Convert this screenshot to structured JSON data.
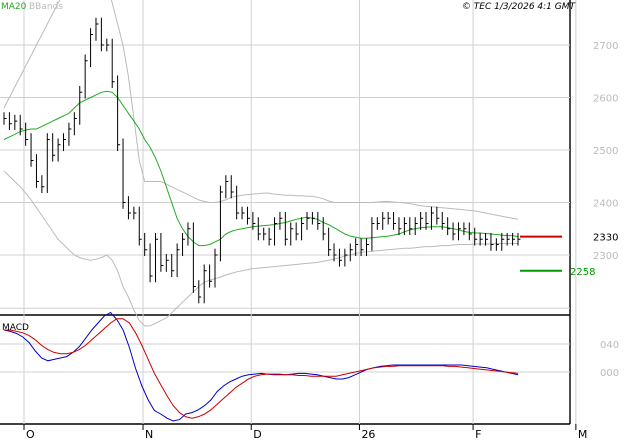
{
  "header": {
    "ma_label": "MA20",
    "bb_label": "BBands",
    "copyright": "© TEC 1/3/2026 4:1 GMT"
  },
  "colors": {
    "ma": "#22aa22",
    "bbands": "#bbbbbb",
    "price": "#000000",
    "macd": "#0000cc",
    "signal": "#cc0000",
    "marker_red": "#cc0000",
    "marker_green": "#009900",
    "grid": "#d0d0d0"
  },
  "chart_data": [
    {
      "type": "ohlc",
      "title": "",
      "legend": [
        "MA20",
        "BBands"
      ],
      "x_ticks": [
        {
          "label": "O",
          "i": 0
        },
        {
          "label": "N",
          "i": 22
        },
        {
          "label": "D",
          "i": 42
        },
        {
          "label": "26",
          "i": 62
        },
        {
          "label": "F",
          "i": 83
        },
        {
          "label": "M",
          "i": 102
        }
      ],
      "ylim": [
        2190,
        2750
      ],
      "y_ticks": [
        2300,
        2400,
        2500,
        2600,
        2700
      ],
      "markers": [
        {
          "label": "2330",
          "value": 2335,
          "color": "red"
        },
        {
          "label": "2258",
          "value": 2270,
          "color": "green"
        }
      ],
      "close": [
        2560,
        2550,
        2555,
        2540,
        2520,
        2480,
        2440,
        2430,
        2520,
        2490,
        2510,
        2520,
        2540,
        2560,
        2610,
        2670,
        2720,
        2740,
        2700,
        2700,
        2630,
        2510,
        2400,
        2380,
        2380,
        2330,
        2310,
        2260,
        2330,
        2280,
        2290,
        2270,
        2310,
        2330,
        2350,
        2240,
        2220,
        2270,
        2250,
        2300,
        2420,
        2440,
        2420,
        2380,
        2380,
        2370,
        2360,
        2340,
        2340,
        2330,
        2360,
        2370,
        2330,
        2350,
        2340,
        2360,
        2370,
        2370,
        2360,
        2340,
        2310,
        2300,
        2290,
        2300,
        2310,
        2320,
        2310,
        2320,
        2360,
        2360,
        2370,
        2370,
        2360,
        2350,
        2360,
        2350,
        2360,
        2370,
        2360,
        2380,
        2370,
        2360,
        2350,
        2340,
        2350,
        2350,
        2340,
        2330,
        2330,
        2330,
        2320,
        2320,
        2330,
        2330,
        2330,
        2330
      ],
      "ma20": [
        2520,
        2525,
        2530,
        2535,
        2538,
        2540,
        2540,
        2545,
        2550,
        2555,
        2560,
        2565,
        2570,
        2580,
        2590,
        2595,
        2600,
        2605,
        2610,
        2612,
        2610,
        2600,
        2585,
        2570,
        2555,
        2540,
        2520,
        2505,
        2485,
        2460,
        2430,
        2400,
        2370,
        2350,
        2335,
        2325,
        2318,
        2318,
        2320,
        2325,
        2330,
        2340,
        2345,
        2348,
        2350,
        2352,
        2354,
        2355,
        2356,
        2357,
        2358,
        2360,
        2362,
        2365,
        2368,
        2370,
        2372,
        2370,
        2368,
        2362,
        2358,
        2352,
        2346,
        2340,
        2336,
        2334,
        2332,
        2332,
        2333,
        2334,
        2335,
        2336,
        2338,
        2340,
        2344,
        2348,
        2350,
        2352,
        2353,
        2354,
        2354,
        2354,
        2352,
        2350,
        2348,
        2345,
        2343,
        2342,
        2342,
        2341,
        2340,
        2339,
        2338,
        2337,
        2337,
        2335
      ],
      "bb_upper": [
        2580,
        2600,
        2620,
        2640,
        2660,
        2680,
        2700,
        2720,
        2740,
        2760,
        2780,
        2800,
        2820,
        2830,
        2840,
        2848,
        2850,
        2846,
        2840,
        2820,
        2780,
        2740,
        2700,
        2640,
        2560,
        2480,
        2440,
        2440,
        2440,
        2440,
        2435,
        2430,
        2425,
        2420,
        2415,
        2410,
        2405,
        2402,
        2400,
        2400,
        2402,
        2405,
        2410,
        2412,
        2414,
        2415,
        2416,
        2417,
        2418,
        2418,
        2416,
        2415,
        2414,
        2414,
        2413,
        2413,
        2412,
        2412,
        2410,
        2407,
        2403,
        2400,
        2400,
        2400,
        2400,
        2400,
        2400,
        2400,
        2400,
        2401,
        2402,
        2402,
        2401,
        2400,
        2399,
        2398,
        2396,
        2394,
        2393,
        2392,
        2391,
        2390,
        2389,
        2388,
        2387,
        2386,
        2385,
        2384,
        2382,
        2380,
        2378,
        2376,
        2374,
        2372,
        2370,
        2368
      ],
      "bb_lower": [
        2460,
        2450,
        2440,
        2430,
        2418,
        2405,
        2390,
        2375,
        2360,
        2345,
        2330,
        2320,
        2310,
        2300,
        2295,
        2292,
        2290,
        2292,
        2295,
        2300,
        2290,
        2270,
        2240,
        2220,
        2195,
        2175,
        2165,
        2165,
        2170,
        2175,
        2180,
        2190,
        2200,
        2210,
        2220,
        2230,
        2240,
        2248,
        2252,
        2255,
        2258,
        2262,
        2265,
        2268,
        2270,
        2272,
        2274,
        2275,
        2276,
        2277,
        2278,
        2279,
        2280,
        2281,
        2282,
        2283,
        2284,
        2285,
        2286,
        2288,
        2290,
        2292,
        2295,
        2298,
        2300,
        2303,
        2305,
        2306,
        2307,
        2308,
        2309,
        2310,
        2311,
        2312,
        2313,
        2313,
        2314,
        2315,
        2316,
        2316,
        2317,
        2318,
        2318,
        2319,
        2320,
        2320,
        2320,
        2321,
        2321,
        2321,
        2321,
        2322,
        2322,
        2322,
        2322,
        2322
      ]
    },
    {
      "type": "line",
      "title": "",
      "label": "MACD",
      "y_ticks": [
        40,
        0
      ],
      "ylim": [
        -75,
        85
      ],
      "series": [
        {
          "name": "",
          "values": [
            60,
            58,
            55,
            50,
            42,
            30,
            20,
            16,
            18,
            20,
            22,
            28,
            36,
            48,
            60,
            70,
            80,
            85,
            75,
            60,
            35,
            5,
            -20,
            -40,
            -55,
            -60,
            -66,
            -70,
            -68,
            -60,
            -58,
            -54,
            -48,
            -40,
            -28,
            -20,
            -14,
            -10,
            -6,
            -4,
            -3,
            -2,
            -3,
            -4,
            -4,
            -4,
            -3,
            -2,
            -2,
            -3,
            -4,
            -6,
            -8,
            -10,
            -10,
            -8,
            -4,
            0,
            4,
            6,
            8,
            9,
            10,
            10,
            10,
            10,
            10,
            10,
            10,
            10,
            10,
            10,
            10,
            10,
            9,
            8,
            7,
            6,
            4,
            2,
            0,
            -2,
            -4
          ]
        },
        {
          "name": "",
          "values": [
            60,
            60,
            58,
            56,
            52,
            46,
            38,
            32,
            28,
            26,
            26,
            28,
            32,
            38,
            46,
            54,
            62,
            70,
            76,
            76,
            70,
            56,
            38,
            18,
            -2,
            -18,
            -34,
            -48,
            -58,
            -64,
            -66,
            -64,
            -60,
            -54,
            -46,
            -38,
            -30,
            -22,
            -16,
            -10,
            -6,
            -4,
            -3,
            -3,
            -3,
            -4,
            -4,
            -5,
            -5,
            -6,
            -6,
            -6,
            -6,
            -6,
            -4,
            -2,
            0,
            2,
            4,
            6,
            7,
            8,
            8,
            9,
            9,
            9,
            9,
            9,
            9,
            9,
            9,
            8,
            8,
            7,
            6,
            5,
            4,
            3,
            2,
            1,
            0,
            -1,
            -2
          ]
        }
      ]
    }
  ]
}
